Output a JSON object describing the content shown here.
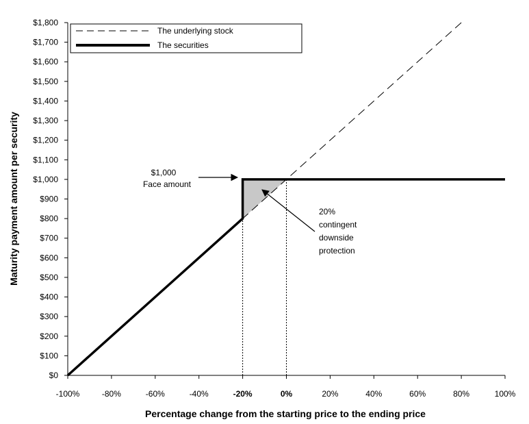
{
  "chart_data": {
    "type": "line",
    "xlabel": "Percentage change from the starting price to the ending price",
    "ylabel": "Maturity payment amount per security",
    "xlim": [
      -100,
      100
    ],
    "ylim": [
      0,
      1800
    ],
    "x_ticks": [
      {
        "value": -100,
        "label": "-100%",
        "bold": false
      },
      {
        "value": -80,
        "label": "-80%",
        "bold": false
      },
      {
        "value": -60,
        "label": "-60%",
        "bold": false
      },
      {
        "value": -40,
        "label": "-40%",
        "bold": false
      },
      {
        "value": -20,
        "label": "-20%",
        "bold": true
      },
      {
        "value": 0,
        "label": "0%",
        "bold": true
      },
      {
        "value": 20,
        "label": "20%",
        "bold": false
      },
      {
        "value": 40,
        "label": "40%",
        "bold": false
      },
      {
        "value": 60,
        "label": "60%",
        "bold": false
      },
      {
        "value": 80,
        "label": "80%",
        "bold": false
      },
      {
        "value": 100,
        "label": "100%",
        "bold": false
      }
    ],
    "y_ticks": [
      {
        "value": 0,
        "label": "$0"
      },
      {
        "value": 100,
        "label": "$100"
      },
      {
        "value": 200,
        "label": "$200"
      },
      {
        "value": 300,
        "label": "$300"
      },
      {
        "value": 400,
        "label": "$400"
      },
      {
        "value": 500,
        "label": "$500"
      },
      {
        "value": 600,
        "label": "$600"
      },
      {
        "value": 700,
        "label": "$700"
      },
      {
        "value": 800,
        "label": "$800"
      },
      {
        "value": 900,
        "label": "$900"
      },
      {
        "value": 1000,
        "label": "$1,000"
      },
      {
        "value": 1100,
        "label": "$1,100"
      },
      {
        "value": 1200,
        "label": "$1,200"
      },
      {
        "value": 1300,
        "label": "$1,300"
      },
      {
        "value": 1400,
        "label": "$1,400"
      },
      {
        "value": 1500,
        "label": "$1,500"
      },
      {
        "value": 1600,
        "label": "$1,600"
      },
      {
        "value": 1700,
        "label": "$1,700"
      },
      {
        "value": 1800,
        "label": "$1,800"
      }
    ],
    "series": [
      {
        "name": "The underlying stock",
        "style": "dashed",
        "color": "#000000",
        "points": [
          [
            -100,
            0
          ],
          [
            80,
            1800
          ]
        ]
      },
      {
        "name": "The securities",
        "style": "thick",
        "color": "#000000",
        "points": [
          [
            -100,
            0
          ],
          [
            -20,
            800
          ],
          [
            -20,
            1000
          ],
          [
            100,
            1000
          ]
        ]
      }
    ],
    "shaded_region": {
      "points": [
        [
          -20,
          800
        ],
        [
          -20,
          1000
        ],
        [
          0,
          1000
        ]
      ],
      "color": "#c8c8c8"
    },
    "reference_lines": [
      {
        "x": -20,
        "y": 1000,
        "style": "dotted"
      },
      {
        "x": 0,
        "y": 1000,
        "style": "dotted"
      }
    ],
    "legend": {
      "position": "top-left"
    },
    "annotations": [
      {
        "id": "face",
        "lines": [
          "$1,000",
          "Face amount"
        ]
      },
      {
        "id": "protection",
        "lines": [
          "20%",
          "contingent",
          "downside",
          "protection"
        ]
      }
    ],
    "grid": false
  }
}
